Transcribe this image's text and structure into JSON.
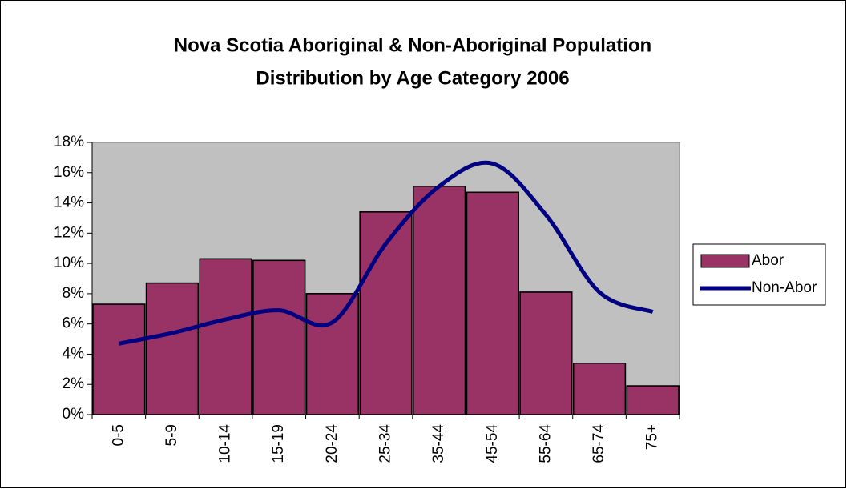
{
  "chart_data": {
    "type": "bar_line",
    "title": [
      "Nova Scotia Aboriginal & Non-Aboriginal Population",
      "Distribution by Age Category 2006"
    ],
    "categories": [
      "0-5",
      "5-9",
      "10-14",
      "15-19",
      "20-24",
      "25-34",
      "35-44",
      "45-54",
      "55-64",
      "65-74",
      "75+"
    ],
    "series": [
      {
        "name": "Abor",
        "type": "bar",
        "color": "#993366",
        "values": [
          7.3,
          8.7,
          10.3,
          10.2,
          8.0,
          13.4,
          15.1,
          14.7,
          8.1,
          3.4,
          1.9
        ]
      },
      {
        "name": "Non-Abor",
        "type": "line",
        "color": "#000080",
        "values": [
          4.7,
          5.4,
          6.3,
          6.9,
          6.1,
          11.3,
          15.1,
          16.6,
          13.2,
          8.1,
          6.8
        ]
      }
    ],
    "ylim": [
      0,
      18
    ],
    "yticks": [
      {
        "value": 0,
        "label": "0%"
      },
      {
        "value": 2,
        "label": "2%"
      },
      {
        "value": 4,
        "label": "4%"
      },
      {
        "value": 6,
        "label": "6%"
      },
      {
        "value": 8,
        "label": "8%"
      },
      {
        "value": 10,
        "label": "10%"
      },
      {
        "value": 12,
        "label": "12%"
      },
      {
        "value": 14,
        "label": "14%"
      },
      {
        "value": 16,
        "label": "16%"
      },
      {
        "value": 18,
        "label": "18%"
      }
    ],
    "legend": "right"
  }
}
